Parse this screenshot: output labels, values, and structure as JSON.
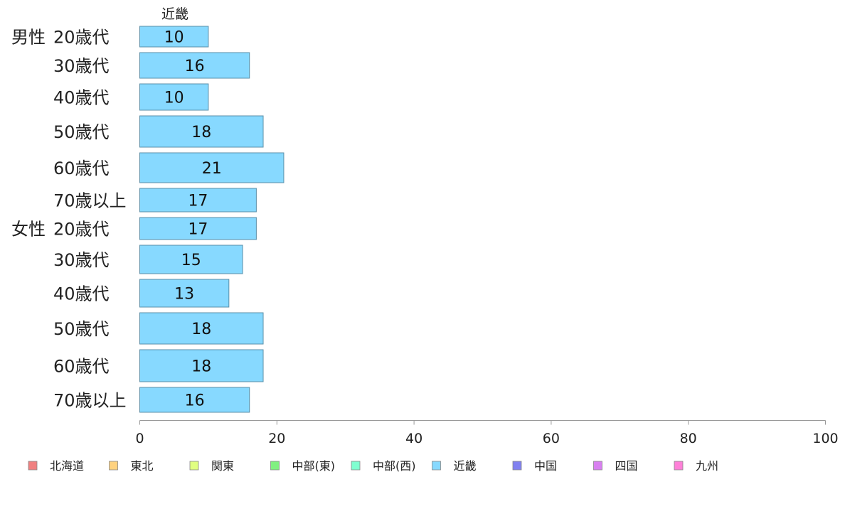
{
  "chart_data": {
    "type": "bar",
    "orientation": "horizontal",
    "stacked": true,
    "column_header": "近畿",
    "groups": [
      {
        "label": "男性",
        "categories": [
          "20歳代",
          "30歳代",
          "40歳代",
          "50歳代",
          "60歳代",
          "70歳以上"
        ]
      },
      {
        "label": "女性",
        "categories": [
          "20歳代",
          "30歳代",
          "40歳代",
          "50歳代",
          "60歳代",
          "70歳以上"
        ]
      }
    ],
    "series": [
      {
        "name": "北海道",
        "color": "#f08080",
        "values": [
          0,
          0,
          0,
          0,
          0,
          0,
          0,
          0,
          0,
          0,
          0,
          0
        ]
      },
      {
        "name": "東北",
        "color": "#ffd27f",
        "values": [
          0,
          0,
          0,
          0,
          0,
          0,
          0,
          0,
          0,
          0,
          0,
          0
        ]
      },
      {
        "name": "関東",
        "color": "#e0ff80",
        "values": [
          0,
          0,
          0,
          0,
          0,
          0,
          0,
          0,
          0,
          0,
          0,
          0
        ]
      },
      {
        "name": "中部(東)",
        "color": "#80f080",
        "values": [
          0,
          0,
          0,
          0,
          0,
          0,
          0,
          0,
          0,
          0,
          0,
          0
        ]
      },
      {
        "name": "中部(西)",
        "color": "#80ffd0",
        "values": [
          0,
          0,
          0,
          0,
          0,
          0,
          0,
          0,
          0,
          0,
          0,
          0
        ]
      },
      {
        "name": "近畿",
        "color": "#87d9ff",
        "values": [
          10,
          16,
          10,
          18,
          21,
          17,
          17,
          15,
          13,
          18,
          18,
          16
        ]
      },
      {
        "name": "中国",
        "color": "#8080f0",
        "values": [
          0,
          0,
          0,
          0,
          0,
          0,
          0,
          0,
          0,
          0,
          0,
          0
        ]
      },
      {
        "name": "四国",
        "color": "#d880f0",
        "values": [
          0,
          0,
          0,
          0,
          0,
          0,
          0,
          0,
          0,
          0,
          0,
          0
        ]
      },
      {
        "name": "九州",
        "color": "#ff80d8",
        "values": [
          0,
          0,
          0,
          0,
          0,
          0,
          0,
          0,
          0,
          0,
          0,
          0
        ]
      }
    ],
    "xlim": [
      0,
      100
    ],
    "xticks": [
      "0",
      "20",
      "40",
      "60",
      "80",
      "100"
    ],
    "legend_position": "bottom",
    "grid": false,
    "colors": {
      "bar_stroke": "#5a8fa8",
      "axis": "#999999",
      "text": "#222222"
    }
  }
}
